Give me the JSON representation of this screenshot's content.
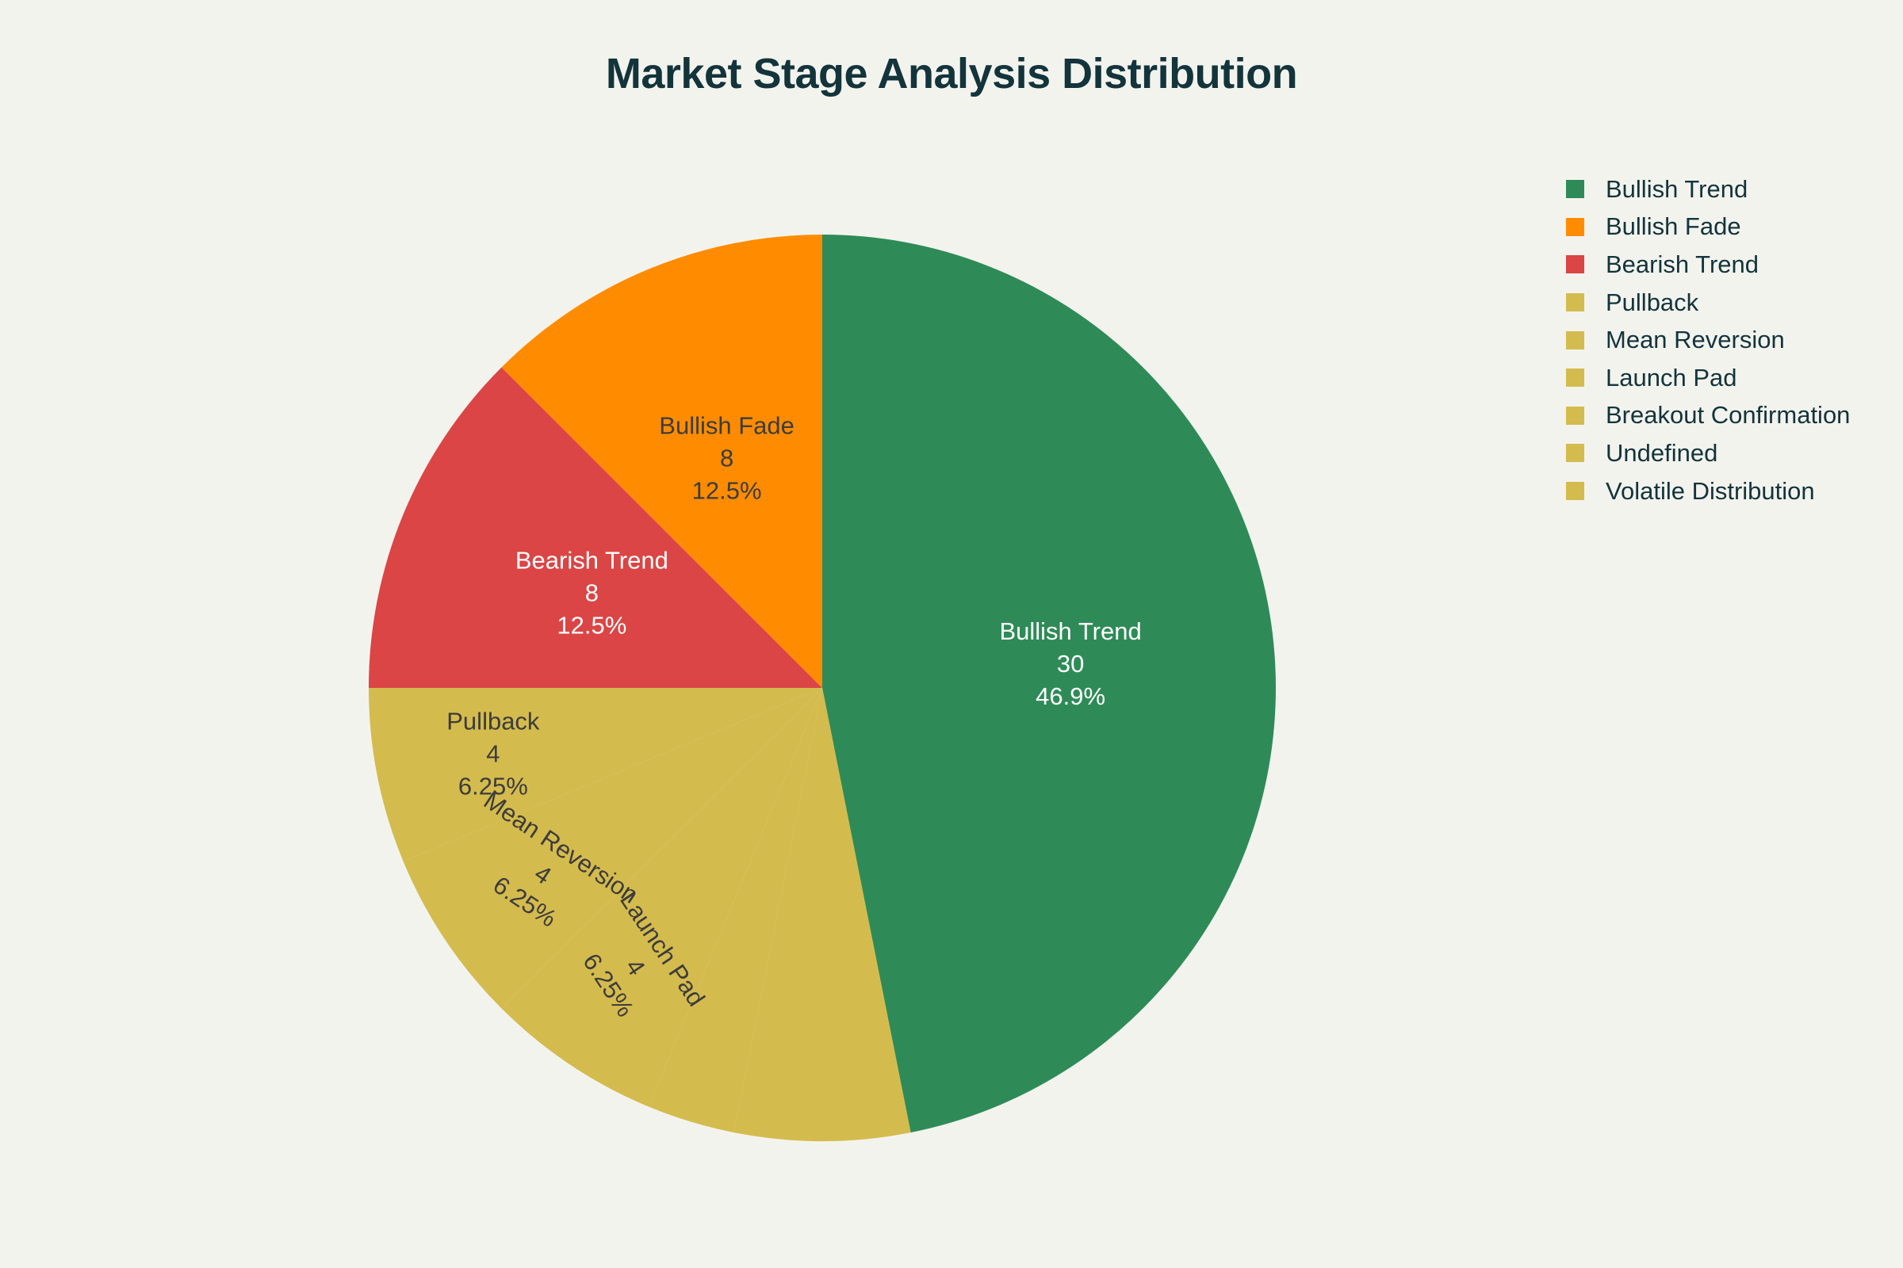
{
  "title": "Market Stage Analysis Distribution",
  "colors": {
    "background": "#f3f3ee",
    "title": "#13343b",
    "dark_label": "#3c3c3c",
    "light_label": "#ffffff"
  },
  "chart_data": {
    "type": "pie",
    "title": "Market Stage Analysis Distribution",
    "direction": "clockwise",
    "start_angle_deg": 0,
    "legend_position": "top-right",
    "text_info": "label+value+percent",
    "slices": [
      {
        "label": "Bullish Trend",
        "value": 30,
        "percent": "46.9%",
        "color": "#2e8b57",
        "label_color": "#ffffff",
        "show_label": true
      },
      {
        "label": "Volatile Distribution",
        "value": 4,
        "percent": "6.25%",
        "color": "#d4bb4d",
        "label_color": "#3c3c3c",
        "show_label": false
      },
      {
        "label": "Undefined",
        "value": 2,
        "percent": "3.13%",
        "color": "#d4bb4d",
        "label_color": "#3c3c3c",
        "show_label": false
      },
      {
        "label": "Launch Pad",
        "value": 4,
        "percent": "6.25%",
        "color": "#d4bb4d",
        "label_color": "#3c3c3c",
        "show_label": true
      },
      {
        "label": "Mean Reversion",
        "value": 4,
        "percent": "6.25%",
        "color": "#d4bb4d",
        "label_color": "#3c3c3c",
        "show_label": true
      },
      {
        "label": "Pullback",
        "value": 4,
        "percent": "6.25%",
        "color": "#d4bb4d",
        "label_color": "#3c3c3c",
        "show_label": true
      },
      {
        "label": "Bearish Trend",
        "value": 8,
        "percent": "12.5%",
        "color": "#db4545",
        "label_color": "#ffffff",
        "show_label": true
      },
      {
        "label": "Bullish Fade",
        "value": 8,
        "percent": "12.5%",
        "color": "#ff8c00",
        "label_color": "#3c3c3c",
        "show_label": true
      }
    ],
    "legend": [
      {
        "label": "Bullish Trend",
        "color": "#2e8b57"
      },
      {
        "label": "Bullish Fade",
        "color": "#ff8c00"
      },
      {
        "label": "Bearish Trend",
        "color": "#db4545"
      },
      {
        "label": "Pullback",
        "color": "#d4bb4d"
      },
      {
        "label": "Mean Reversion",
        "color": "#d4bb4d"
      },
      {
        "label": "Launch Pad",
        "color": "#d4bb4d"
      },
      {
        "label": "Breakout Confirmation",
        "color": "#d4bb4d"
      },
      {
        "label": "Undefined",
        "color": "#d4bb4d"
      },
      {
        "label": "Volatile Distribution",
        "color": "#d4bb4d"
      }
    ]
  }
}
